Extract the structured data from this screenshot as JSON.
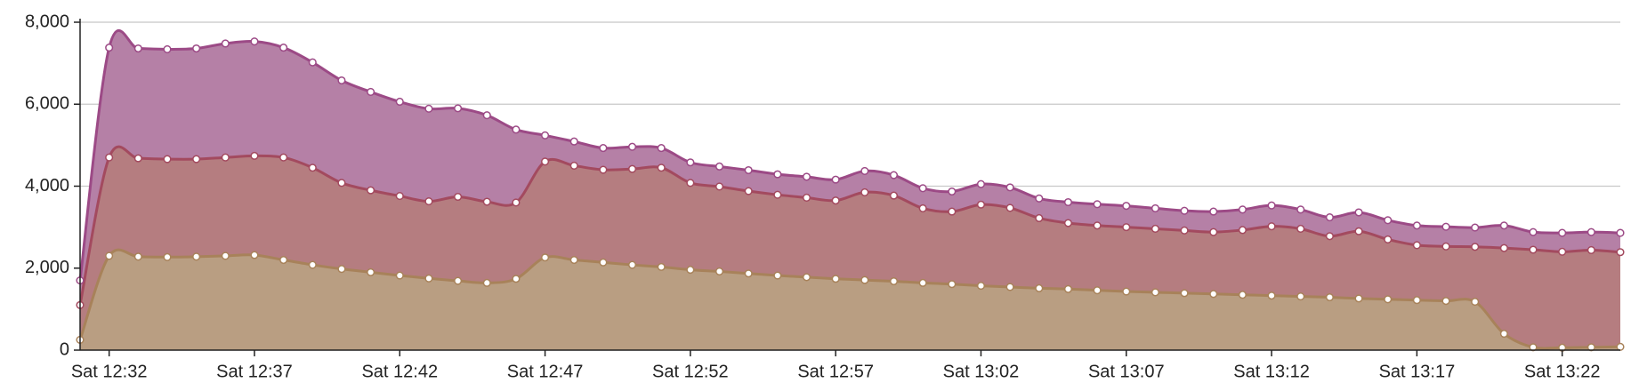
{
  "chart_data": {
    "type": "stacked-area",
    "x": [
      "12:31",
      "12:32",
      "12:33",
      "12:34",
      "12:35",
      "12:36",
      "12:37",
      "12:38",
      "12:39",
      "12:40",
      "12:41",
      "12:42",
      "12:43",
      "12:44",
      "12:45",
      "12:46",
      "12:47",
      "12:48",
      "12:49",
      "12:50",
      "12:51",
      "12:52",
      "12:53",
      "12:54",
      "12:55",
      "12:56",
      "12:57",
      "12:58",
      "12:59",
      "13:00",
      "13:01",
      "13:02",
      "13:03",
      "13:04",
      "13:05",
      "13:06",
      "13:07",
      "13:08",
      "13:09",
      "13:10",
      "13:11",
      "13:12",
      "13:13",
      "13:14",
      "13:15",
      "13:16",
      "13:17",
      "13:18",
      "13:19",
      "13:20",
      "13:21",
      "13:22",
      "13:23",
      "13:24"
    ],
    "xlim": [
      "12:31",
      "13:24"
    ],
    "xticks": [
      {
        "value": "12:32",
        "label": "Sat 12:32"
      },
      {
        "value": "12:37",
        "label": "Sat 12:37"
      },
      {
        "value": "12:42",
        "label": "Sat 12:42"
      },
      {
        "value": "12:47",
        "label": "Sat 12:47"
      },
      {
        "value": "12:52",
        "label": "Sat 12:52"
      },
      {
        "value": "12:57",
        "label": "Sat 12:57"
      },
      {
        "value": "13:02",
        "label": "Sat 13:02"
      },
      {
        "value": "13:07",
        "label": "Sat 13:07"
      },
      {
        "value": "13:12",
        "label": "Sat 13:12"
      },
      {
        "value": "13:17",
        "label": "Sat 13:17"
      },
      {
        "value": "13:22",
        "label": "Sat 13:22"
      }
    ],
    "ylim": [
      0,
      8000
    ],
    "yticks": [
      0,
      {
        "value": 2000,
        "label": "2,000"
      },
      {
        "value": 4000,
        "label": "4,000"
      },
      {
        "value": 6000,
        "label": "6,000"
      },
      {
        "value": 8000,
        "label": "8,000"
      }
    ],
    "grid": true,
    "series": [
      {
        "color": "#a8825a",
        "fill": "#b99e82",
        "values": [
          250,
          2300,
          2280,
          2270,
          2280,
          2300,
          2320,
          2200,
          2080,
          1980,
          1900,
          1820,
          1750,
          1690,
          1640,
          1740,
          2260,
          2200,
          2140,
          2080,
          2030,
          1960,
          1920,
          1870,
          1820,
          1780,
          1740,
          1710,
          1680,
          1640,
          1610,
          1570,
          1540,
          1510,
          1490,
          1460,
          1430,
          1410,
          1390,
          1370,
          1350,
          1330,
          1310,
          1290,
          1260,
          1240,
          1220,
          1200,
          1180,
          400,
          70,
          60,
          70,
          80
        ]
      },
      {
        "color": "#a34a5f",
        "fill": "#b57d80",
        "values": [
          850,
          2400,
          2400,
          2390,
          2380,
          2400,
          2420,
          2500,
          2370,
          2100,
          2000,
          1940,
          1880,
          2050,
          1980,
          1860,
          2340,
          2300,
          2260,
          2340,
          2420,
          2120,
          2070,
          2010,
          1970,
          1940,
          1910,
          2140,
          2090,
          1820,
          1770,
          1980,
          1930,
          1710,
          1610,
          1580,
          1570,
          1550,
          1530,
          1510,
          1580,
          1690,
          1650,
          1490,
          1640,
          1460,
          1340,
          1330,
          1340,
          2090,
          2380,
          2340,
          2370,
          2310
        ]
      },
      {
        "color": "#9c4a86",
        "fill": "#b580a6",
        "values": [
          600,
          2680,
          2680,
          2680,
          2700,
          2780,
          2790,
          2680,
          2570,
          2500,
          2400,
          2300,
          2260,
          2160,
          2110,
          1780,
          640,
          590,
          530,
          540,
          480,
          500,
          490,
          510,
          500,
          510,
          510,
          520,
          500,
          490,
          490,
          500,
          500,
          480,
          510,
          520,
          520,
          500,
          480,
          500,
          500,
          510,
          470,
          460,
          460,
          470,
          480,
          480,
          470,
          550,
          430,
          460,
          440,
          470
        ]
      }
    ]
  }
}
